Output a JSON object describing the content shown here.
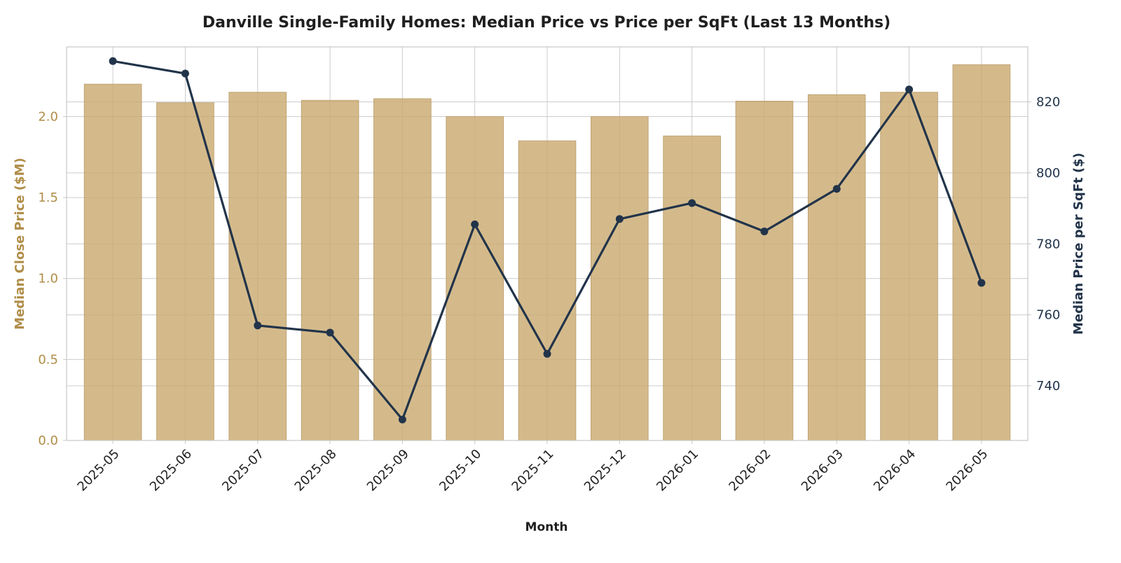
{
  "chart_data": {
    "type": "bar",
    "title": "Danville Single-Family Homes: Median Price vs Price per SqFt (Last 13 Months)",
    "xlabel": "Month",
    "ylabel": "Median Close Price ($M)",
    "ylabel_right": "Median Price per SqFt ($)",
    "categories": [
      "2025-05",
      "2025-06",
      "2025-07",
      "2025-08",
      "2025-09",
      "2025-10",
      "2025-11",
      "2025-12",
      "2026-01",
      "2026-02",
      "2026-03",
      "2026-04",
      "2026-05"
    ],
    "series": [
      {
        "type": "bar",
        "axis": "left",
        "values": [
          2.2,
          2.085,
          2.15,
          2.1,
          2.11,
          2.0,
          1.85,
          2.0,
          1.88,
          2.095,
          2.135,
          2.15,
          2.32
        ],
        "color": "#c9a96e"
      },
      {
        "type": "line",
        "axis": "right",
        "values": [
          831.5,
          828.0,
          757.0,
          755.0,
          730.5,
          785.5,
          749.0,
          787.0,
          791.5,
          783.5,
          795.5,
          823.5,
          769.0
        ],
        "color": "#22344a"
      }
    ],
    "ylim": [
      0,
      2.43
    ],
    "ylim_right": [
      724.6,
      835.5
    ],
    "yticks_left": [
      "0.0",
      "0.5",
      "1.0",
      "1.5",
      "2.0"
    ],
    "yticks_right": [
      "740",
      "760",
      "780",
      "800",
      "820"
    ],
    "grid": true,
    "colors": {
      "left_axis": "#b08d48",
      "right_axis": "#22344a",
      "bar": "#c9a96e",
      "line": "#22344a"
    }
  }
}
